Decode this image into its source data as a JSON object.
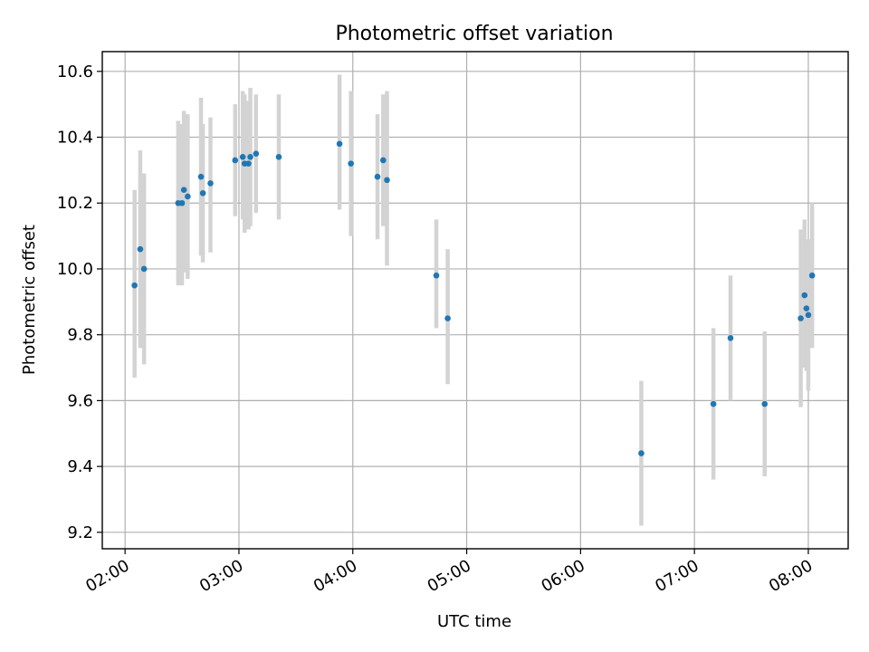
{
  "chart_data": {
    "type": "scatter",
    "title": "Photometric offset variation",
    "xlabel": "UTC time",
    "ylabel": "Photometric offset",
    "xticks": [
      "02:00",
      "03:00",
      "04:00",
      "05:00",
      "06:00",
      "07:00",
      "08:00"
    ],
    "yticks": [
      "9.2",
      "9.4",
      "9.6",
      "9.8",
      "10.0",
      "10.2",
      "10.4",
      "10.6"
    ],
    "xlim": [
      "01:48",
      "08:21"
    ],
    "ylim": [
      9.15,
      10.66
    ],
    "grid": true,
    "colors": {
      "marker": "#1f77b4",
      "errorbar": "#d3d3d3"
    },
    "points": [
      {
        "x": "02:05",
        "y": 9.95,
        "ylow": 9.67,
        "yhigh": 10.24
      },
      {
        "x": "02:08",
        "y": 10.06,
        "ylow": 9.76,
        "yhigh": 10.36
      },
      {
        "x": "02:10",
        "y": 10.0,
        "ylow": 9.71,
        "yhigh": 10.29
      },
      {
        "x": "02:28",
        "y": 10.2,
        "ylow": 9.95,
        "yhigh": 10.45
      },
      {
        "x": "02:30",
        "y": 10.2,
        "ylow": 9.95,
        "yhigh": 10.44
      },
      {
        "x": "02:31",
        "y": 10.24,
        "ylow": 9.99,
        "yhigh": 10.48
      },
      {
        "x": "02:33",
        "y": 10.22,
        "ylow": 9.97,
        "yhigh": 10.47
      },
      {
        "x": "02:40",
        "y": 10.28,
        "ylow": 10.04,
        "yhigh": 10.52
      },
      {
        "x": "02:41",
        "y": 10.23,
        "ylow": 10.02,
        "yhigh": 10.44
      },
      {
        "x": "02:45",
        "y": 10.26,
        "ylow": 10.05,
        "yhigh": 10.46
      },
      {
        "x": "02:58",
        "y": 10.33,
        "ylow": 10.16,
        "yhigh": 10.5
      },
      {
        "x": "03:02",
        "y": 10.34,
        "ylow": 10.15,
        "yhigh": 10.54
      },
      {
        "x": "03:03",
        "y": 10.32,
        "ylow": 10.11,
        "yhigh": 10.53
      },
      {
        "x": "03:05",
        "y": 10.32,
        "ylow": 10.12,
        "yhigh": 10.51
      },
      {
        "x": "03:06",
        "y": 10.34,
        "ylow": 10.13,
        "yhigh": 10.55
      },
      {
        "x": "03:09",
        "y": 10.35,
        "ylow": 10.17,
        "yhigh": 10.53
      },
      {
        "x": "03:21",
        "y": 10.34,
        "ylow": 10.15,
        "yhigh": 10.53
      },
      {
        "x": "03:53",
        "y": 10.38,
        "ylow": 10.18,
        "yhigh": 10.59
      },
      {
        "x": "03:59",
        "y": 10.32,
        "ylow": 10.1,
        "yhigh": 10.54
      },
      {
        "x": "04:13",
        "y": 10.28,
        "ylow": 10.09,
        "yhigh": 10.47
      },
      {
        "x": "04:16",
        "y": 10.33,
        "ylow": 10.13,
        "yhigh": 10.53
      },
      {
        "x": "04:18",
        "y": 10.27,
        "ylow": 10.01,
        "yhigh": 10.54
      },
      {
        "x": "04:44",
        "y": 9.98,
        "ylow": 9.82,
        "yhigh": 10.15
      },
      {
        "x": "04:50",
        "y": 9.85,
        "ylow": 9.65,
        "yhigh": 10.06
      },
      {
        "x": "06:32",
        "y": 9.44,
        "ylow": 9.22,
        "yhigh": 9.66
      },
      {
        "x": "07:10",
        "y": 9.59,
        "ylow": 9.36,
        "yhigh": 9.82
      },
      {
        "x": "07:19",
        "y": 9.79,
        "ylow": 9.6,
        "yhigh": 9.98
      },
      {
        "x": "07:37",
        "y": 9.59,
        "ylow": 9.37,
        "yhigh": 9.81
      },
      {
        "x": "07:56",
        "y": 9.85,
        "ylow": 9.58,
        "yhigh": 10.12
      },
      {
        "x": "07:58",
        "y": 9.92,
        "ylow": 9.7,
        "yhigh": 10.15
      },
      {
        "x": "07:59",
        "y": 9.88,
        "ylow": 9.69,
        "yhigh": 10.08
      },
      {
        "x": "08:00",
        "y": 9.86,
        "ylow": 9.63,
        "yhigh": 10.09
      },
      {
        "x": "08:02",
        "y": 9.98,
        "ylow": 9.76,
        "yhigh": 10.2
      }
    ]
  }
}
